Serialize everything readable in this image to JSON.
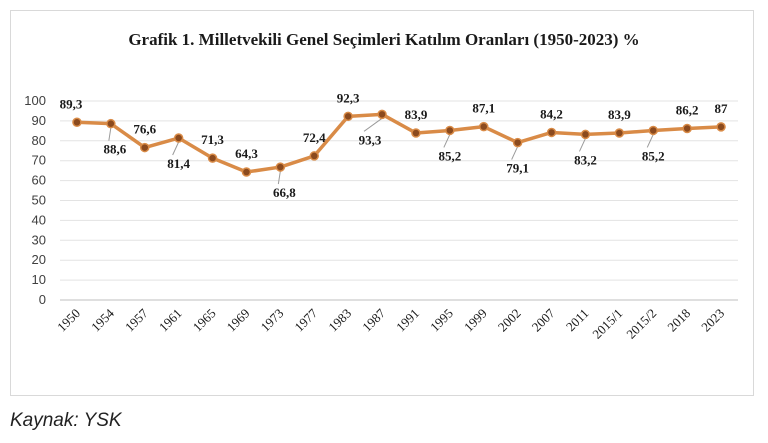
{
  "chart_data": {
    "type": "line",
    "title": "Grafik 1. Milletvekili Genel Seçimleri Katılım Oranları (1950-2023) %",
    "categories": [
      "1950",
      "1954",
      "1957",
      "1961",
      "1965",
      "1969",
      "1973",
      "1977",
      "1983",
      "1987",
      "1991",
      "1995",
      "1999",
      "2002",
      "2007",
      "2011",
      "2015/1",
      "2015/2",
      "2018",
      "2023"
    ],
    "series": [
      {
        "values": [
          89.3,
          88.6,
          76.6,
          81.4,
          71.3,
          64.3,
          66.8,
          72.4,
          92.3,
          93.3,
          83.9,
          85.2,
          87.1,
          79.1,
          84.2,
          83.2,
          83.9,
          85.2,
          86.2,
          87
        ]
      }
    ],
    "data_labels": [
      "89,3",
      "88,6",
      "76,6",
      "81,4",
      "71,3",
      "64,3",
      "66,8",
      "72,4",
      "92,3",
      "93,3",
      "83,9",
      "85,2",
      "87,1",
      "79,1",
      "84,2",
      "83,2",
      "83,9",
      "85,2",
      "86,2",
      "87"
    ],
    "y_ticks": [
      "0",
      "10",
      "20",
      "30",
      "40",
      "50",
      "60",
      "70",
      "80",
      "90",
      "100"
    ],
    "ylim": [
      0,
      100
    ],
    "grid": true,
    "legend": "none",
    "line_color": "#D98B47",
    "marker_color": "#8B4A1E",
    "xlabel": "",
    "ylabel": ""
  },
  "source_note": "Kaynak: YSK"
}
